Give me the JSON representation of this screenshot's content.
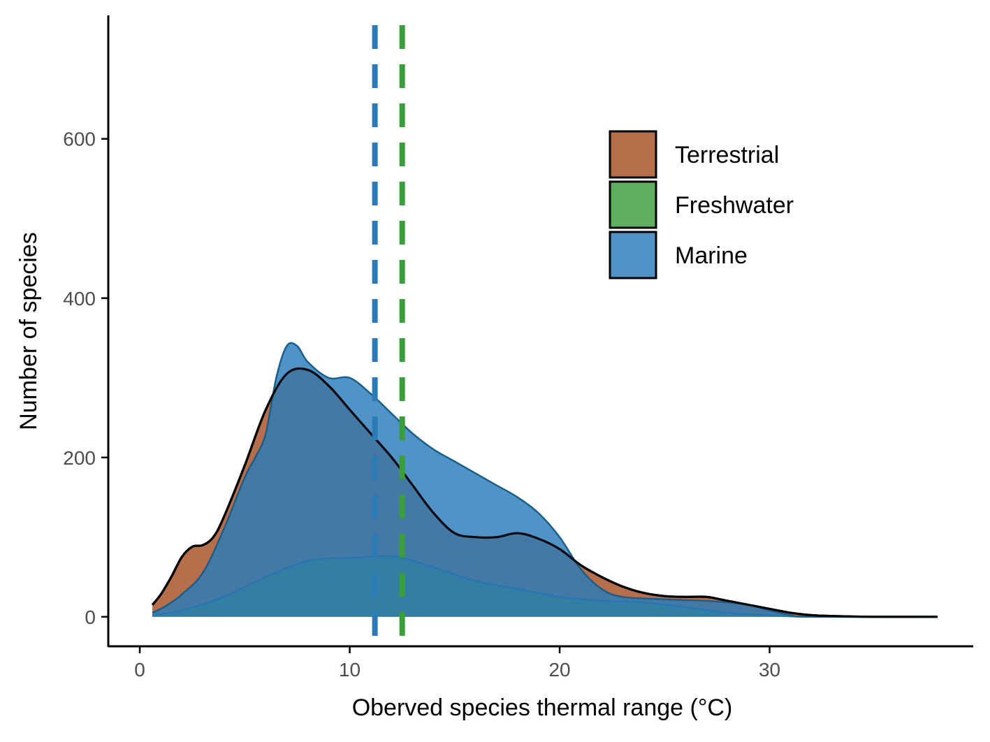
{
  "chart_data": {
    "type": "area",
    "title": "",
    "xlabel": "Oberved species thermal range (°C)",
    "ylabel": "Number of species",
    "xlim": [
      -1.5,
      39.7
    ],
    "ylim": [
      -37,
      755
    ],
    "xticks": [
      0,
      10,
      20,
      30
    ],
    "yticks": [
      0,
      200,
      400,
      600
    ],
    "grid": false,
    "legend_position": "top-right",
    "series": [
      {
        "name": "Terrestrial",
        "color": "#a9552b",
        "points": [
          [
            0.6,
            15
          ],
          [
            1.0,
            28
          ],
          [
            1.5,
            50
          ],
          [
            2.0,
            75
          ],
          [
            2.5,
            88
          ],
          [
            3.0,
            90
          ],
          [
            3.5,
            100
          ],
          [
            4.0,
            125
          ],
          [
            5.0,
            190
          ],
          [
            6.0,
            260
          ],
          [
            7.0,
            305
          ],
          [
            8.0,
            310
          ],
          [
            9.0,
            290
          ],
          [
            10.0,
            260
          ],
          [
            11.0,
            230
          ],
          [
            12.0,
            200
          ],
          [
            13.0,
            165
          ],
          [
            14.0,
            130
          ],
          [
            15.0,
            105
          ],
          [
            16.0,
            100
          ],
          [
            17.0,
            100
          ],
          [
            18.0,
            105
          ],
          [
            19.0,
            98
          ],
          [
            20.0,
            85
          ],
          [
            21.0,
            65
          ],
          [
            22.0,
            50
          ],
          [
            23.0,
            38
          ],
          [
            24.0,
            30
          ],
          [
            25.0,
            26
          ],
          [
            26.0,
            25
          ],
          [
            27.0,
            25
          ],
          [
            28.0,
            20
          ],
          [
            29.0,
            15
          ],
          [
            30.0,
            10
          ],
          [
            31.0,
            5
          ],
          [
            32.0,
            2
          ],
          [
            33.0,
            1
          ],
          [
            35.0,
            0
          ],
          [
            38.0,
            0
          ]
        ]
      },
      {
        "name": "Freshwater",
        "color": "#3a9e3a",
        "points": [
          [
            0.6,
            2
          ],
          [
            2.0,
            8
          ],
          [
            4.0,
            25
          ],
          [
            6.0,
            50
          ],
          [
            8.0,
            70
          ],
          [
            10.0,
            74
          ],
          [
            11.5,
            76
          ],
          [
            12.5,
            74
          ],
          [
            14.0,
            62
          ],
          [
            16.0,
            45
          ],
          [
            18.0,
            35
          ],
          [
            20.0,
            25
          ],
          [
            22.0,
            20
          ],
          [
            24.0,
            18
          ],
          [
            26.0,
            12
          ],
          [
            28.0,
            5
          ],
          [
            30.0,
            2
          ],
          [
            32.0,
            0
          ],
          [
            38.0,
            0
          ]
        ]
      },
      {
        "name": "Marine",
        "color": "#2b7bb9",
        "points": [
          [
            0.6,
            5
          ],
          [
            1.0,
            10
          ],
          [
            1.5,
            18
          ],
          [
            2.0,
            28
          ],
          [
            3.0,
            55
          ],
          [
            4.0,
            110
          ],
          [
            5.0,
            175
          ],
          [
            5.5,
            200
          ],
          [
            6.0,
            230
          ],
          [
            6.5,
            300
          ],
          [
            7.0,
            340
          ],
          [
            7.5,
            340
          ],
          [
            8.0,
            320
          ],
          [
            9.0,
            300
          ],
          [
            10.0,
            300
          ],
          [
            11.0,
            280
          ],
          [
            12.0,
            255
          ],
          [
            13.0,
            230
          ],
          [
            14.0,
            210
          ],
          [
            15.0,
            195
          ],
          [
            16.0,
            180
          ],
          [
            17.0,
            165
          ],
          [
            18.0,
            150
          ],
          [
            19.0,
            130
          ],
          [
            20.0,
            100
          ],
          [
            21.0,
            60
          ],
          [
            22.0,
            35
          ],
          [
            23.0,
            25
          ],
          [
            25.0,
            22
          ],
          [
            27.0,
            20
          ],
          [
            28.0,
            18
          ],
          [
            29.0,
            15
          ],
          [
            30.0,
            8
          ],
          [
            31.0,
            2
          ],
          [
            32.0,
            0
          ],
          [
            38.0,
            0
          ]
        ]
      }
    ],
    "reference_lines": [
      {
        "series": "Marine",
        "x": 11.2,
        "color": "#2b7bb9",
        "style": "dashed"
      },
      {
        "series": "Freshwater",
        "x": 12.5,
        "color": "#3a9e3a",
        "style": "dashed"
      }
    ]
  },
  "legend": {
    "items": [
      {
        "label": "Terrestrial",
        "color": "#a9552b"
      },
      {
        "label": "Freshwater",
        "color": "#3a9e3a"
      },
      {
        "label": "Marine",
        "color": "#2b7bb9"
      }
    ]
  }
}
